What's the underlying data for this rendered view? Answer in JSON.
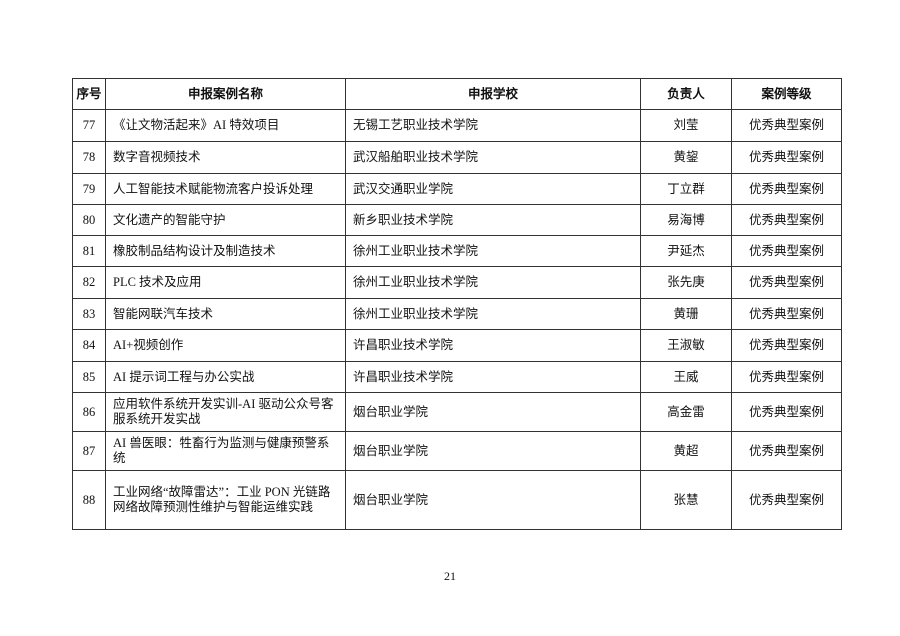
{
  "table": {
    "headers": [
      "序号",
      "申报案例名称",
      "申报学校",
      "负责人",
      "案例等级"
    ],
    "rows": [
      {
        "no": "77",
        "name": "《让文物活起来》AI 特效项目",
        "school": "无锡工艺职业技术学院",
        "lead": "刘莹",
        "level": "优秀典型案例"
      },
      {
        "no": "78",
        "name": "数字音视频技术",
        "school": "武汉船舶职业技术学院",
        "lead": "黄鋆",
        "level": "优秀典型案例"
      },
      {
        "no": "79",
        "name": "人工智能技术赋能物流客户投诉处理",
        "school": "武汉交通职业学院",
        "lead": "丁立群",
        "level": "优秀典型案例"
      },
      {
        "no": "80",
        "name": "文化遗产的智能守护",
        "school": "新乡职业技术学院",
        "lead": "易海博",
        "level": "优秀典型案例"
      },
      {
        "no": "81",
        "name": "橡胶制品结构设计及制造技术",
        "school": "徐州工业职业技术学院",
        "lead": "尹延杰",
        "level": "优秀典型案例"
      },
      {
        "no": "82",
        "name": "PLC 技术及应用",
        "school": "徐州工业职业技术学院",
        "lead": "张先庚",
        "level": "优秀典型案例"
      },
      {
        "no": "83",
        "name": "智能网联汽车技术",
        "school": "徐州工业职业技术学院",
        "lead": "黄珊",
        "level": "优秀典型案例"
      },
      {
        "no": "84",
        "name": "AI+视频创作",
        "school": "许昌职业技术学院",
        "lead": "王淑敏",
        "level": "优秀典型案例"
      },
      {
        "no": "85",
        "name": "AI 提示词工程与办公实战",
        "school": "许昌职业技术学院",
        "lead": "王威",
        "level": "优秀典型案例"
      },
      {
        "no": "86",
        "name": "应用软件系统开发实训-AI 驱动公众号客服系统开发实战",
        "school": "烟台职业学院",
        "lead": "高金雷",
        "level": "优秀典型案例"
      },
      {
        "no": "87",
        "name": "AI 兽医眼：牲畜行为监测与健康预警系统",
        "school": "烟台职业学院",
        "lead": "黄超",
        "level": "优秀典型案例"
      },
      {
        "no": "88",
        "name": "工业网络“故障雷达”：工业 PON 光链路网络故障预测性维护与智能运维实践",
        "school": "烟台职业学院",
        "lead": "张慧",
        "level": "优秀典型案例"
      }
    ]
  },
  "page_number": "21"
}
